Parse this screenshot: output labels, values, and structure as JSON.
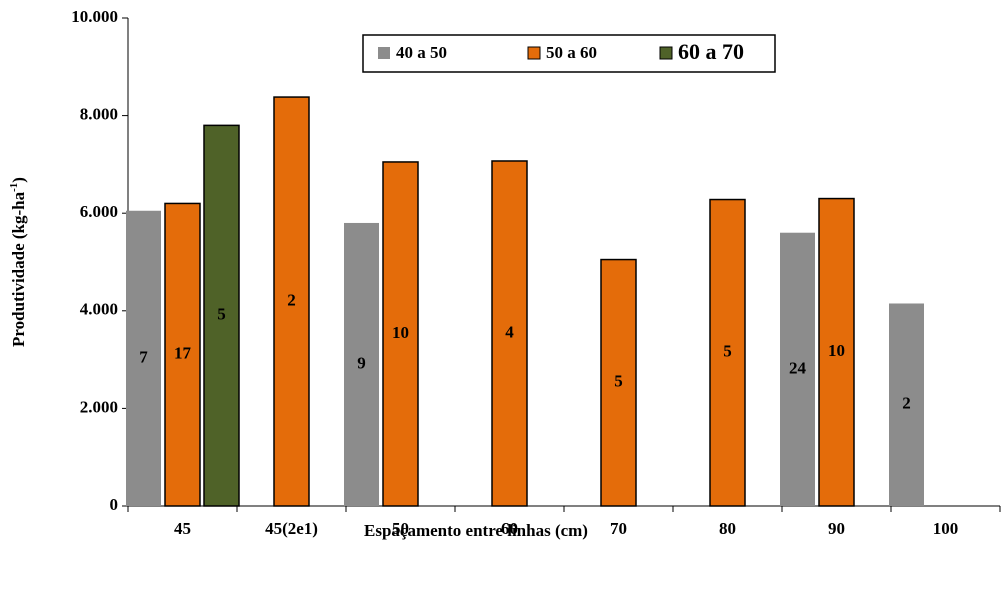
{
  "chart_data": {
    "type": "bar",
    "ylabel": {
      "text": "Produtividade (kg-ha",
      "sup": "-1",
      "end": ")"
    },
    "xlabel": "Espaçamento entre linhas (cm)",
    "categories": [
      "45",
      "45(2e1)",
      "50",
      "60",
      "70",
      "80",
      "90",
      "100"
    ],
    "series": [
      {
        "name": "40 a 50",
        "color": "#8c8c8c",
        "values": [
          6050,
          null,
          5800,
          null,
          null,
          null,
          5600,
          4150
        ],
        "counts": [
          "7",
          null,
          "9",
          null,
          null,
          null,
          "24",
          "2"
        ]
      },
      {
        "name": "50 a 60",
        "color": "#e46c0a",
        "values": [
          6200,
          8380,
          7050,
          7070,
          5050,
          6280,
          6300,
          null
        ],
        "counts": [
          "17",
          "2",
          "10",
          "4",
          "5",
          "5",
          "10",
          null
        ]
      },
      {
        "name": "60 a 70",
        "color": "#4f6228",
        "values": [
          7800,
          null,
          null,
          null,
          null,
          null,
          null,
          null
        ],
        "counts": [
          "5",
          null,
          null,
          null,
          null,
          null,
          null,
          null
        ]
      }
    ],
    "ylim": [
      0,
      10000
    ],
    "yticks": [
      0,
      {
        "value": 2000,
        "label": "2.000"
      },
      {
        "value": 4000,
        "label": "4.000"
      },
      {
        "value": 6000,
        "label": "6.000"
      },
      {
        "value": 8000,
        "label": "8.000"
      },
      {
        "value": 10000,
        "label": "10.000"
      }
    ],
    "legend": "top"
  }
}
